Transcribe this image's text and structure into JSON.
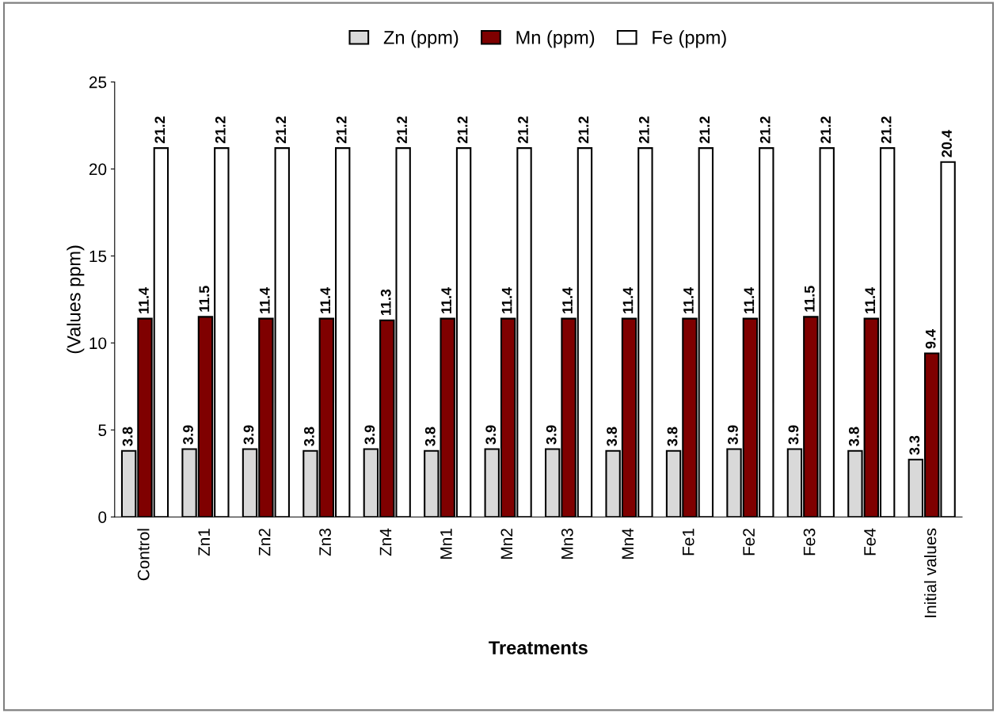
{
  "chart_data": {
    "type": "bar",
    "xlabel": "Treatments",
    "ylabel": "(Values ppm)",
    "categories": [
      "Control",
      "Zn1",
      "Zn2",
      "Zn3",
      "Zn4",
      "Mn1",
      "Mn2",
      "Mn3",
      "Mn4",
      "Fe1",
      "Fe2",
      "Fe3",
      "Fe4",
      "Initial values"
    ],
    "series": [
      {
        "name": "Zn (ppm)",
        "color": "#d9d9d9",
        "values": [
          3.8,
          3.9,
          3.9,
          3.8,
          3.9,
          3.8,
          3.9,
          3.9,
          3.8,
          3.8,
          3.9,
          3.9,
          3.8,
          3.3
        ]
      },
      {
        "name": "Mn (ppm)",
        "color": "#7f0000",
        "values": [
          11.4,
          11.5,
          11.4,
          11.4,
          11.3,
          11.4,
          11.4,
          11.4,
          11.4,
          11.4,
          11.4,
          11.5,
          11.4,
          9.4
        ]
      },
      {
        "name": "Fe (ppm)",
        "color": "#ffffff",
        "values": [
          21.2,
          21.2,
          21.2,
          21.2,
          21.2,
          21.2,
          21.2,
          21.2,
          21.2,
          21.2,
          21.2,
          21.2,
          21.2,
          20.4
        ]
      }
    ],
    "ylim": [
      0,
      25
    ],
    "yticks": [
      0,
      5,
      10,
      15,
      20,
      25
    ],
    "grid": false,
    "legend": "top",
    "data_labels": true
  }
}
